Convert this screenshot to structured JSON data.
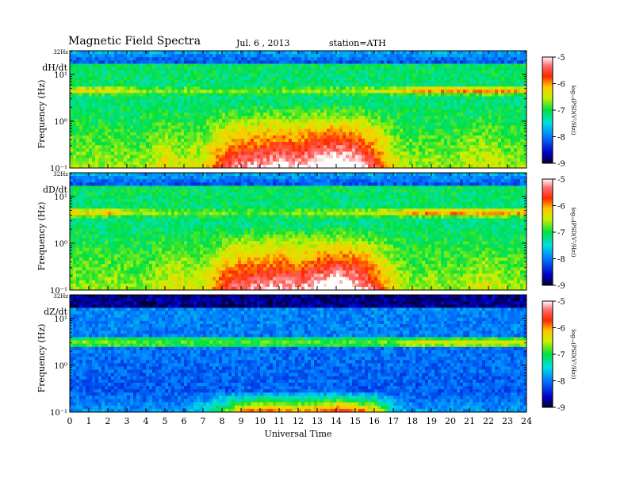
{
  "header": {
    "title": "Magnetic Field Spectra",
    "date": "Jul. 6 , 2013",
    "station": "station=ATH"
  },
  "chart_data": [
    {
      "type": "heatmap",
      "panel_label": "dH/dt",
      "ylabel": "Frequency (Hz)",
      "y_top_label": "32Hz",
      "y_ticks": [
        "10¹",
        "10⁰",
        "10⁻¹"
      ],
      "y_scale": "log",
      "ylim": [
        0.1,
        32
      ],
      "xlim": [
        0,
        24
      ],
      "colorbar": {
        "label": "log₁₀(PSD(V²/Hz))",
        "ticks": [
          "-5",
          "-6",
          "-7",
          "-8",
          "-9"
        ],
        "range": [
          -9,
          -5
        ]
      },
      "activity": [
        0.22,
        0.2,
        0.22,
        0.2,
        0.2,
        0.35,
        0.25,
        0.3,
        0.55,
        0.7,
        0.72,
        0.78,
        0.72,
        0.85,
        0.9,
        0.85,
        0.6,
        0.3,
        0.2,
        0.22,
        0.2,
        0.25,
        0.3,
        0.2,
        0.2
      ],
      "pc_band_hz": 4.5,
      "pc_band_strength": [
        0.6,
        0.7,
        0.65,
        0.5,
        0.4,
        0.35,
        0.35,
        0.35,
        0.35,
        0.3,
        0.3,
        0.3,
        0.35,
        0.4,
        0.4,
        0.5,
        0.5,
        0.6,
        0.85,
        0.9,
        0.9,
        0.9,
        0.9,
        0.9,
        0.8
      ]
    },
    {
      "type": "heatmap",
      "panel_label": "dD/dt",
      "ylabel": "Frequency (Hz)",
      "y_top_label": "32Hz",
      "y_ticks": [
        "10¹",
        "10⁰",
        "10⁻¹"
      ],
      "y_scale": "log",
      "ylim": [
        0.1,
        32
      ],
      "xlim": [
        0,
        24
      ],
      "colorbar": {
        "label": "log₁₀(PSD(V²/Hz))",
        "ticks": [
          "-5",
          "-6",
          "-7",
          "-8",
          "-9"
        ],
        "range": [
          -9,
          -5
        ]
      },
      "activity": [
        0.2,
        0.2,
        0.22,
        0.2,
        0.2,
        0.3,
        0.3,
        0.3,
        0.55,
        0.68,
        0.7,
        0.75,
        0.7,
        0.8,
        0.88,
        0.82,
        0.6,
        0.32,
        0.2,
        0.22,
        0.2,
        0.22,
        0.3,
        0.2,
        0.2
      ],
      "pc_band_hz": 4.5,
      "pc_band_strength": [
        0.75,
        0.8,
        0.8,
        0.6,
        0.4,
        0.35,
        0.35,
        0.35,
        0.35,
        0.3,
        0.3,
        0.3,
        0.35,
        0.4,
        0.45,
        0.5,
        0.5,
        0.6,
        0.85,
        0.9,
        0.9,
        0.9,
        0.9,
        0.9,
        0.8
      ]
    },
    {
      "type": "heatmap",
      "panel_label": "dZ/dt",
      "ylabel": "Frequency (Hz)",
      "y_top_label": "32Hz",
      "y_ticks": [
        "10¹",
        "10⁰",
        "10⁻¹"
      ],
      "y_scale": "log",
      "ylim": [
        0.1,
        32
      ],
      "xlim": [
        0,
        24
      ],
      "colorbar": {
        "label": "log₁₀(PSD(V²/Hz))",
        "ticks": [
          "-5",
          "-6",
          "-7",
          "-8",
          "-9"
        ],
        "range": [
          -9,
          -5
        ]
      },
      "activity": [
        0.05,
        0.05,
        0.05,
        0.05,
        0.05,
        0.05,
        0.05,
        0.1,
        0.2,
        0.3,
        0.35,
        0.35,
        0.3,
        0.35,
        0.4,
        0.35,
        0.3,
        0.1,
        0.05,
        0.05,
        0.05,
        0.05,
        0.05,
        0.05,
        0.05
      ],
      "pc_band_hz": 3.0,
      "pc_band_strength": [
        0.3,
        0.35,
        0.35,
        0.3,
        0.3,
        0.25,
        0.25,
        0.25,
        0.25,
        0.25,
        0.25,
        0.25,
        0.25,
        0.25,
        0.25,
        0.25,
        0.25,
        0.3,
        0.55,
        0.6,
        0.6,
        0.6,
        0.6,
        0.6,
        0.55
      ]
    }
  ],
  "x_axis": {
    "label": "Universal Time",
    "ticks": [
      "0",
      "1",
      "2",
      "3",
      "4",
      "5",
      "6",
      "7",
      "8",
      "9",
      "10",
      "11",
      "12",
      "13",
      "14",
      "15",
      "16",
      "17",
      "18",
      "19",
      "20",
      "21",
      "22",
      "23",
      "24"
    ]
  }
}
